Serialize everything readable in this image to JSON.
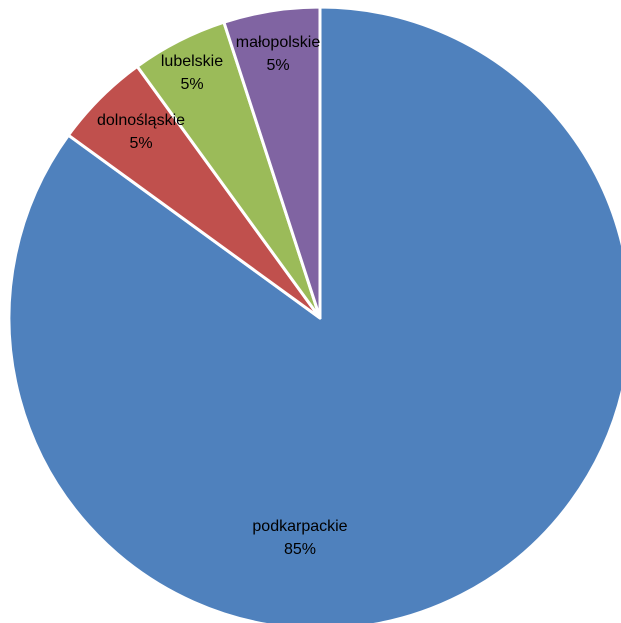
{
  "chart_data": {
    "type": "pie",
    "title": "",
    "start_angle_deg": 0,
    "direction": "clockwise",
    "legend": "none",
    "slices": [
      {
        "label": "podkarpackie",
        "value": 85,
        "display": "85%",
        "color": "#4f81bd"
      },
      {
        "label": "dolnośląskie",
        "value": 5,
        "display": "5%",
        "color": "#c0504d"
      },
      {
        "label": "lubelskie",
        "value": 5,
        "display": "5%",
        "color": "#9bbb59"
      },
      {
        "label": "małopolskie",
        "value": 5,
        "display": "5%",
        "color": "#8064a2"
      }
    ],
    "slice_border_color": "#ffffff"
  }
}
